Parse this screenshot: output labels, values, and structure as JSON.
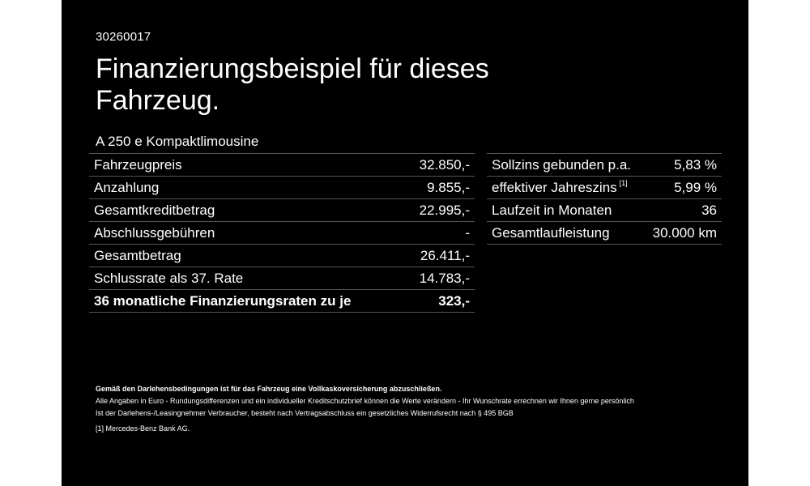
{
  "reference": "30260017",
  "title": "Finanzierungsbeispiel für dieses Fahrzeug.",
  "subtitle": "A 250 e Kompaktlimousine",
  "left_table": [
    {
      "label": "Fahrzeugpreis",
      "value": "32.850,-"
    },
    {
      "label": "Anzahlung",
      "value": "9.855,-"
    },
    {
      "label": "Gesamtkreditbetrag",
      "value": "22.995,-"
    },
    {
      "label": "Abschlussgebühren",
      "value": "-"
    },
    {
      "label": "Gesamtbetrag",
      "value": "26.411,-"
    },
    {
      "label": "Schlussrate als 37. Rate",
      "value": "14.783,-"
    },
    {
      "label": "36 monatliche Finanzierungsraten zu je",
      "value": "323,-"
    }
  ],
  "right_table": [
    {
      "label": "Sollzins gebunden p.a.",
      "value": "5,83 %"
    },
    {
      "label": "effektiver Jahreszins",
      "sup": "[1]",
      "value": "5,99 %"
    },
    {
      "label": "Laufzeit in Monaten",
      "value": "36"
    },
    {
      "label": "Gesamtlaufleistung",
      "value": "30.000 km"
    }
  ],
  "notes": {
    "bold_line": "Gemäß den Darlehensbedingungen ist für das Fahrzeug eine Vollkaskoversicherung abzuschließen.",
    "line1": "Alle Angaben in Euro - Rundungsdifferenzen und ein individueller Kreditschutzbrief können die Werte verändern - Ihr Wunschrate errechnen wir Ihnen gerne persönlich",
    "line2": "Ist der Darlehens-/Leasingnehmer Verbraucher, besteht nach Vertragsabschluss ein gesetzliches Widerrufsrecht nach § 495 BGB"
  },
  "footnote": {
    "marker": "[1]",
    "text": "Mercedes-Benz Bank AG."
  }
}
